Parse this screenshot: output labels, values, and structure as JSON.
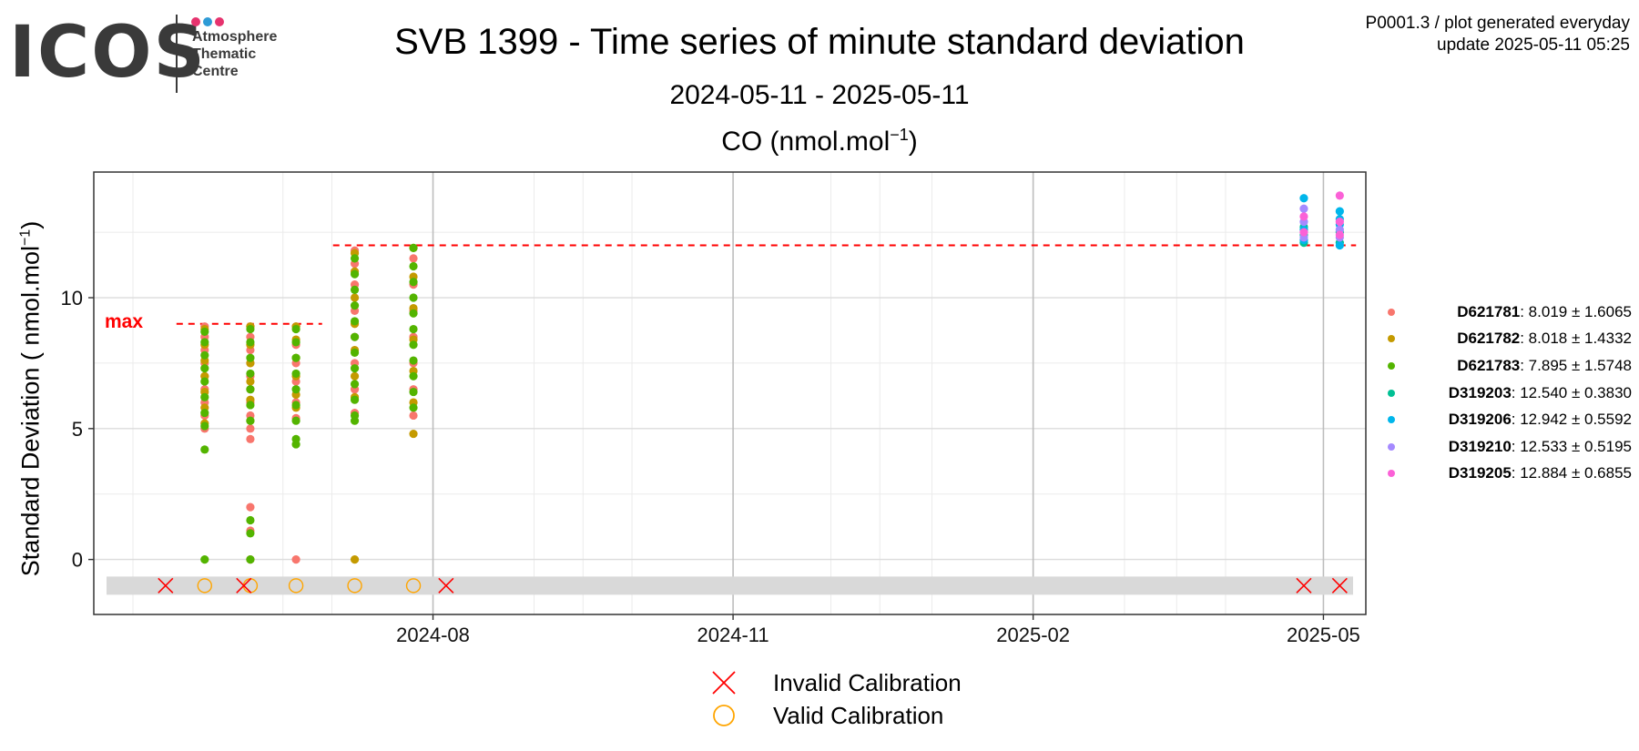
{
  "logo": {
    "word": "ICOS",
    "line1": "Atmosphere",
    "line2": "Thematic",
    "line3": "Centre",
    "dot_colors": [
      "#e6336e",
      "#2e9bd6",
      "#e6336e"
    ]
  },
  "header": {
    "title": "SVB 1399 - Time series of minute standard deviation",
    "subtitle": "2024-05-11 - 2025-05-11",
    "panel_title_base": "CO (nmol.mol",
    "panel_title_sup": "−1",
    "panel_title_end": ")",
    "meta_line1": "P0001.3 / plot generated everyday",
    "meta_line2": "update  2025-05-11 05:25"
  },
  "chart_data": {
    "type": "scatter",
    "title": "CO (nmol.mol−1)",
    "ylabel_base": "Standard Deviation ( nmol.mol",
    "ylabel_sup": "−1",
    "ylabel_end": ")",
    "x_range": [
      "2024-05-11",
      "2025-05-11"
    ],
    "x_ticks": [
      {
        "date": "2024-08-01",
        "label": "2024-08"
      },
      {
        "date": "2024-11-01",
        "label": "2024-11"
      },
      {
        "date": "2025-02-01",
        "label": "2025-02"
      },
      {
        "date": "2025-05-01",
        "label": "2025-05"
      }
    ],
    "y_ticks": [
      0,
      5,
      10
    ],
    "ylim": [
      -2.1,
      14.8
    ],
    "grid": true,
    "max_label": "max",
    "max_lines": [
      {
        "x_from": "2024-05-11",
        "x_to": "2024-06-28",
        "y": 9.0
      },
      {
        "x_from": "2024-06-28",
        "x_to": "2025-05-11",
        "y": 12.0
      }
    ],
    "series": [
      {
        "name": "D621781",
        "color": "#f8766d",
        "mean": "8.019",
        "sd": "1.6065",
        "clusters": [
          {
            "date": "2024-05-23",
            "values": [
              5.0,
              5.5,
              6.0,
              6.5,
              7.0,
              7.5,
              8.0,
              8.5,
              8.9
            ]
          },
          {
            "date": "2024-06-06",
            "values": [
              0.0,
              1.1,
              2.0,
              4.6,
              5.0,
              5.5,
              6.0,
              6.5,
              7.0,
              7.5,
              8.0,
              8.5,
              8.9
            ]
          },
          {
            "date": "2024-06-20",
            "values": [
              0.0,
              5.4,
              6.0,
              6.8,
              7.5,
              8.2,
              8.9
            ]
          },
          {
            "date": "2024-07-08",
            "values": [
              5.6,
              6.5,
              7.5,
              8.5,
              9.5,
              10.5,
              11.3,
              11.8
            ]
          },
          {
            "date": "2024-07-26",
            "values": [
              5.5,
              6.5,
              7.5,
              8.5,
              9.5,
              10.5,
              11.5
            ]
          }
        ]
      },
      {
        "name": "D621782",
        "color": "#c49a00",
        "mean": "8.018",
        "sd": "1.4332",
        "clusters": [
          {
            "date": "2024-05-23",
            "values": [
              5.2,
              5.8,
              6.4,
              7.0,
              7.6,
              8.2,
              8.8
            ]
          },
          {
            "date": "2024-06-06",
            "values": [
              5.3,
              6.1,
              6.8,
              7.5,
              8.2,
              8.9
            ]
          },
          {
            "date": "2024-06-20",
            "values": [
              5.8,
              6.3,
              7.0,
              7.7,
              8.4,
              8.9
            ]
          },
          {
            "date": "2024-07-08",
            "values": [
              0.0,
              6.2,
              7.0,
              8.0,
              9.0,
              10.0,
              11.0,
              11.7
            ]
          },
          {
            "date": "2024-07-26",
            "values": [
              4.8,
              6.0,
              7.2,
              8.4,
              9.6,
              10.8,
              11.9
            ]
          }
        ]
      },
      {
        "name": "D621783",
        "color": "#53b400",
        "mean": "7.895",
        "sd": "1.5748",
        "clusters": [
          {
            "date": "2024-05-23",
            "values": [
              0.0,
              4.2,
              5.1,
              5.6,
              6.2,
              6.8,
              7.3,
              7.8,
              8.3,
              8.7
            ]
          },
          {
            "date": "2024-06-06",
            "values": [
              0.0,
              1.0,
              1.5,
              5.3,
              5.9,
              6.5,
              7.1,
              7.7,
              8.3,
              8.8
            ]
          },
          {
            "date": "2024-06-20",
            "values": [
              4.4,
              4.6,
              5.3,
              5.9,
              6.5,
              7.1,
              7.7,
              8.3,
              8.8
            ]
          },
          {
            "date": "2024-07-08",
            "values": [
              5.3,
              5.5,
              6.1,
              6.7,
              7.3,
              7.9,
              8.5,
              9.1,
              9.7,
              10.3,
              10.9,
              11.5
            ]
          },
          {
            "date": "2024-07-26",
            "values": [
              5.8,
              6.4,
              7.0,
              7.6,
              8.2,
              8.8,
              9.4,
              10.0,
              10.6,
              11.2,
              11.9
            ]
          }
        ]
      },
      {
        "name": "D319203",
        "color": "#00c094",
        "mean": "12.540",
        "sd": "0.3830",
        "clusters": [
          {
            "date": "2025-04-25",
            "values": [
              12.1,
              12.4,
              12.7
            ]
          },
          {
            "date": "2025-05-06",
            "values": [
              12.1,
              12.5
            ]
          }
        ]
      },
      {
        "name": "D319206",
        "color": "#00b6eb",
        "mean": "12.942",
        "sd": "0.5592",
        "clusters": [
          {
            "date": "2025-04-25",
            "values": [
              12.2,
              12.6,
              13.8
            ]
          },
          {
            "date": "2025-05-06",
            "values": [
              12.0,
              12.8,
              13.0,
              13.3
            ]
          }
        ]
      },
      {
        "name": "D319210",
        "color": "#a58aff",
        "mean": "12.533",
        "sd": "0.5195",
        "clusters": [
          {
            "date": "2025-04-25",
            "values": [
              12.3,
              12.9,
              13.4
            ]
          },
          {
            "date": "2025-05-06",
            "values": [
              12.3,
              12.6
            ]
          }
        ]
      },
      {
        "name": "D319205",
        "color": "#fb61d7",
        "mean": "12.884",
        "sd": "0.6855",
        "clusters": [
          {
            "date": "2025-04-25",
            "values": [
              12.5,
              13.1
            ]
          },
          {
            "date": "2025-05-06",
            "values": [
              12.4,
              12.9,
              13.9
            ]
          }
        ]
      }
    ],
    "calibrations": {
      "band_y": -1.0,
      "invalid_dates": [
        "2024-05-11",
        "2024-06-04",
        "2024-08-05",
        "2025-04-25",
        "2025-05-06"
      ],
      "valid_dates": [
        "2024-05-23",
        "2024-06-06",
        "2024-06-20",
        "2024-07-08",
        "2024-07-26"
      ],
      "invalid_label": "Invalid Calibration",
      "valid_label": "Valid Calibration",
      "invalid_color": "#ff0000",
      "valid_color": "#ffa500"
    }
  }
}
